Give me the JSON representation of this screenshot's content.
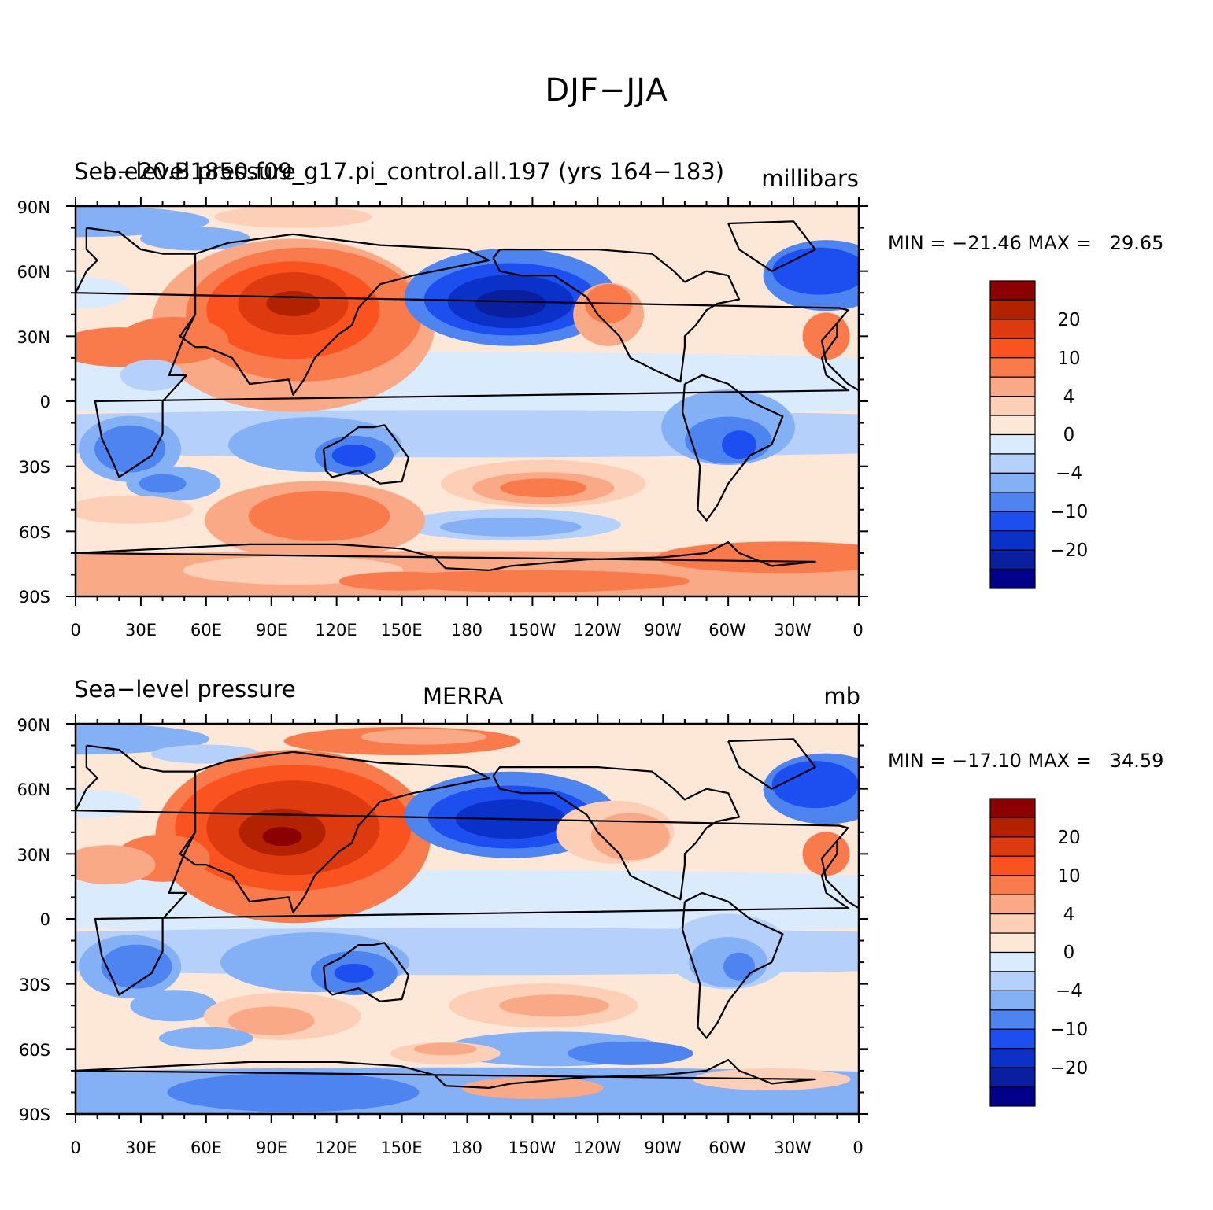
{
  "title": "DJF−JJA",
  "lat_labels": [
    "90N",
    "60N",
    "30N",
    "0",
    "30S",
    "60S",
    "90S"
  ],
  "lon_labels": [
    "0",
    "30E",
    "60E",
    "90E",
    "120E",
    "150E",
    "180",
    "150W",
    "120W",
    "90W",
    "60W",
    "30W",
    "0"
  ],
  "colorbar": {
    "labels": [
      "20",
      "10",
      "4",
      "0",
      "−4",
      "−10",
      "−20"
    ],
    "colors": [
      "#8b0000",
      "#b22200",
      "#dd3a10",
      "#fa5320",
      "#f97a4a",
      "#f9a986",
      "#fdcfb6",
      "#fde8d8",
      "#d9ebfd",
      "#b4d0fb",
      "#84b0f6",
      "#4d84f0",
      "#1d4ef0",
      "#0a31c8",
      "#0a1ea0",
      "#000088"
    ]
  },
  "panels": [
    {
      "left_title": "Sea−level pressure",
      "center_title": "b.e20.B1850.f09_g17.pi_control.all.197 (yrs 164−183)",
      "right_title": "millibars",
      "min_max": "MIN = −21.46 MAX =   29.65"
    },
    {
      "left_title": "Sea−level pressure",
      "center_title": "MERRA",
      "right_title": "mb",
      "min_max": "MIN = −17.10 MAX =   34.59"
    }
  ]
}
